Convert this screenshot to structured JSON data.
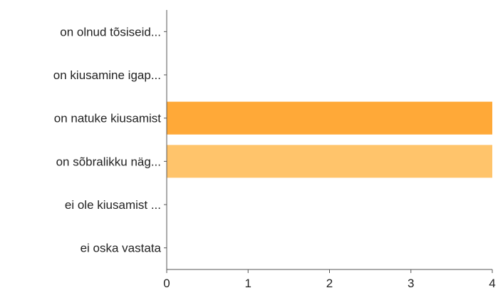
{
  "chart_data": {
    "type": "bar",
    "orientation": "horizontal",
    "categories": [
      "on olnud tõsiseid...",
      "on kiusamine igap...",
      "on natuke kiusamist",
      "on sõbralikku näg...",
      "ei ole kiusamist ...",
      "ei oska vastata"
    ],
    "values": [
      0,
      0,
      4,
      4,
      0,
      0
    ],
    "bar_colors": [
      "#ffa938",
      "#ffa938",
      "#ffa938",
      "#ffc46b",
      "#ffa938",
      "#ffa938"
    ],
    "xlim": [
      0,
      4
    ],
    "xticks": [
      "0",
      "1",
      "2",
      "3",
      "4"
    ],
    "grid": false,
    "legend": "none"
  }
}
